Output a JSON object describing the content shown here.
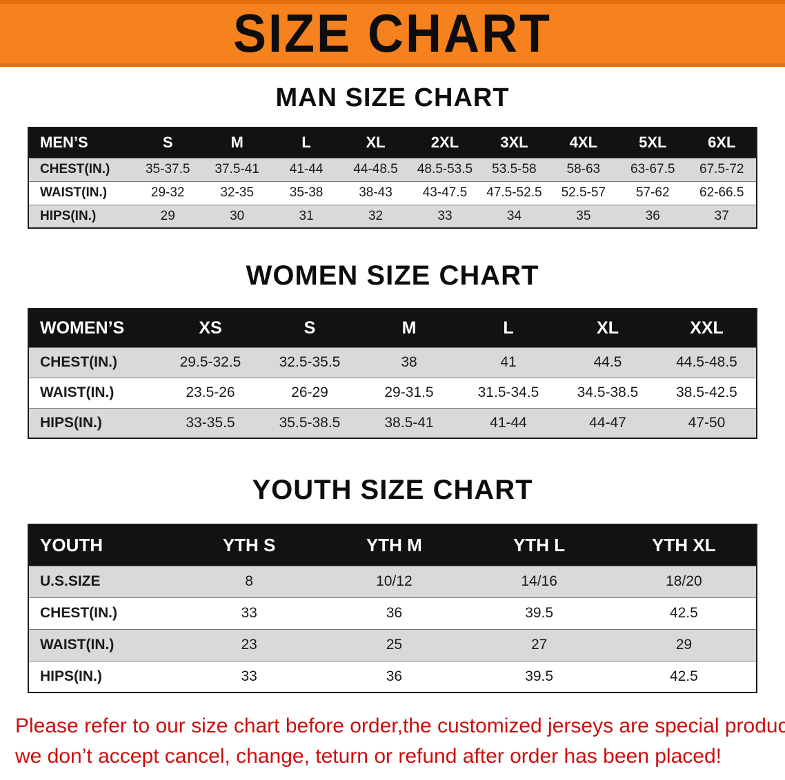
{
  "banner": {
    "title": "SIZE CHART"
  },
  "colors": {
    "banner_orange": "#f5821f",
    "banner_border_orange": "#e2700e",
    "table_header_black": "#121212",
    "row_gray": "#d9d9d9",
    "disclaimer_red": "#cc0e0e"
  },
  "sections": {
    "men": {
      "heading": "MAN SIZE CHART",
      "table": {
        "header": [
          "MEN’S",
          "S",
          "M",
          "L",
          "XL",
          "2XL",
          "3XL",
          "4XL",
          "5XL",
          "6XL"
        ],
        "rows": [
          [
            "CHEST(IN.)",
            "35-37.5",
            "37.5-41",
            "41-44",
            "44-48.5",
            "48.5-53.5",
            "53.5-58",
            "58-63",
            "63-67.5",
            "67.5-72"
          ],
          [
            "WAIST(IN.)",
            "29-32",
            "32-35",
            "35-38",
            "38-43",
            "43-47.5",
            "47.5-52.5",
            "52.5-57",
            "57-62",
            "62-66.5"
          ],
          [
            "HIPS(IN.)",
            "29",
            "30",
            "31",
            "32",
            "33",
            "34",
            "35",
            "36",
            "37"
          ]
        ]
      }
    },
    "women": {
      "heading": "WOMEN SIZE CHART",
      "table": {
        "header": [
          "WOMEN’S",
          "XS",
          "S",
          "M",
          "L",
          "XL",
          "XXL"
        ],
        "rows": [
          [
            "CHEST(IN.)",
            "29.5-32.5",
            "32.5-35.5",
            "38",
            "41",
            "44.5",
            "44.5-48.5"
          ],
          [
            "WAIST(IN.)",
            "23.5-26",
            "26-29",
            "29-31.5",
            "31.5-34.5",
            "34.5-38.5",
            "38.5-42.5"
          ],
          [
            "HIPS(IN.)",
            "33-35.5",
            "35.5-38.5",
            "38.5-41",
            "41-44",
            "44-47",
            "47-50"
          ]
        ]
      }
    },
    "youth": {
      "heading": "YOUTH SIZE CHART",
      "table": {
        "header": [
          "YOUTH",
          "YTH S",
          "YTH M",
          "YTH L",
          "YTH XL"
        ],
        "rows": [
          [
            "U.S.SIZE",
            "8",
            "10/12",
            "14/16",
            "18/20"
          ],
          [
            "CHEST(IN.)",
            "33",
            "36",
            "39.5",
            "42.5"
          ],
          [
            "WAIST(IN.)",
            "23",
            "25",
            "27",
            "29"
          ],
          [
            "HIPS(IN.)",
            "33",
            "36",
            "39.5",
            "42.5"
          ]
        ]
      }
    }
  },
  "disclaimer": {
    "line1": "Please refer to our size chart before order,the customized jerseys are special products,",
    "line2": "we don’t accept cancel, change, teturn or refund after order has been placed!"
  }
}
